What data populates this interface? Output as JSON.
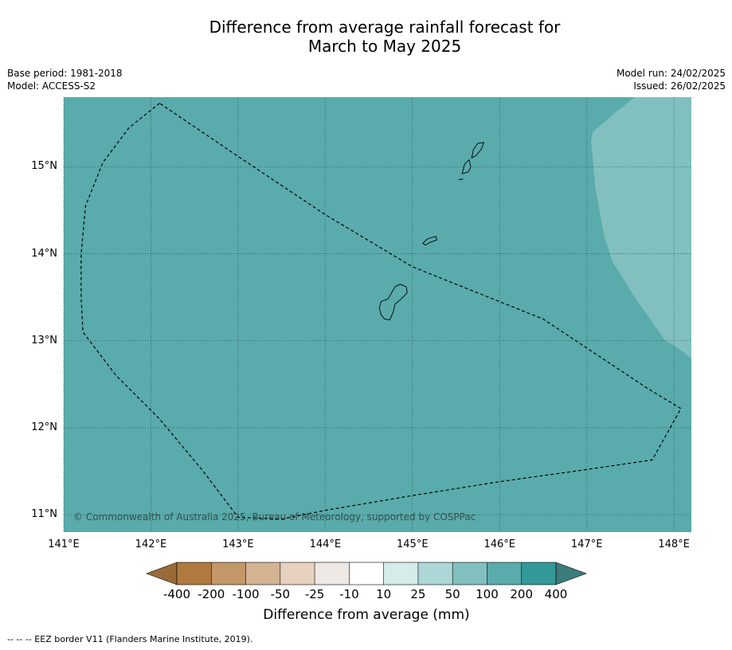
{
  "title": {
    "line1": "Difference from average rainfall forecast for",
    "line2": "March to May 2025"
  },
  "meta": {
    "base_period": "Base period: 1981-2018",
    "model": "Model: ACCESS-S2",
    "model_run": "Model run: 24/02/2025",
    "issued": "Issued: 26/02/2025"
  },
  "map": {
    "lon_ticks": [
      "141°E",
      "142°E",
      "143°E",
      "144°E",
      "145°E",
      "146°E",
      "147°E",
      "148°E"
    ],
    "lat_ticks": [
      "15°N",
      "14°N",
      "13°N",
      "12°N",
      "11°N"
    ],
    "lon_range": [
      141.0,
      148.2
    ],
    "lat_range": [
      10.8,
      15.8
    ],
    "background_category": "100 to 200 mm above average",
    "background_color": "#5aabab",
    "secondary_category": "50 to 100 mm above average",
    "secondary_color": "#82bfbf",
    "border_style": "dashed",
    "copyright": "© Commonwealth of Australia 2025, Bureau of Meteorology, supported by COSPPac",
    "eez_border_points": [
      [
        142.1,
        15.73
      ],
      [
        141.75,
        15.45
      ],
      [
        141.45,
        15.05
      ],
      [
        141.25,
        14.55
      ],
      [
        141.2,
        14.0
      ],
      [
        141.2,
        13.5
      ],
      [
        141.22,
        13.1
      ],
      [
        141.6,
        12.6
      ],
      [
        142.1,
        12.1
      ],
      [
        142.6,
        11.5
      ],
      [
        143.0,
        10.97
      ],
      [
        143.5,
        10.95
      ],
      [
        144.0,
        11.05
      ],
      [
        145.0,
        11.22
      ],
      [
        146.0,
        11.38
      ],
      [
        147.0,
        11.52
      ],
      [
        147.75,
        11.63
      ],
      [
        148.08,
        12.22
      ],
      [
        147.7,
        12.45
      ],
      [
        146.5,
        13.25
      ],
      [
        145.0,
        13.85
      ],
      [
        144.0,
        14.45
      ],
      [
        143.0,
        15.12
      ],
      [
        142.1,
        15.73
      ]
    ],
    "islands": [
      {
        "name": "guam",
        "points": [
          [
            144.64,
            13.45
          ],
          [
            144.72,
            13.48
          ],
          [
            144.8,
            13.62
          ],
          [
            144.86,
            13.65
          ],
          [
            144.93,
            13.62
          ],
          [
            144.94,
            13.55
          ],
          [
            144.87,
            13.48
          ],
          [
            144.8,
            13.42
          ],
          [
            144.78,
            13.33
          ],
          [
            144.74,
            13.24
          ],
          [
            144.68,
            13.25
          ],
          [
            144.64,
            13.3
          ],
          [
            144.62,
            13.38
          ],
          [
            144.64,
            13.45
          ]
        ]
      },
      {
        "name": "rota",
        "points": [
          [
            145.12,
            14.12
          ],
          [
            145.17,
            14.17
          ],
          [
            145.27,
            14.2
          ],
          [
            145.28,
            14.16
          ],
          [
            145.2,
            14.13
          ],
          [
            145.15,
            14.1
          ],
          [
            145.12,
            14.12
          ]
        ]
      },
      {
        "name": "tinian",
        "points": [
          [
            145.57,
            14.92
          ],
          [
            145.6,
            15.03
          ],
          [
            145.65,
            15.08
          ],
          [
            145.67,
            15.0
          ],
          [
            145.64,
            14.94
          ],
          [
            145.57,
            14.92
          ]
        ]
      },
      {
        "name": "saipan",
        "points": [
          [
            145.68,
            15.1
          ],
          [
            145.7,
            15.2
          ],
          [
            145.75,
            15.27
          ],
          [
            145.82,
            15.28
          ],
          [
            145.79,
            15.2
          ],
          [
            145.73,
            15.13
          ],
          [
            145.68,
            15.1
          ]
        ]
      }
    ],
    "aguijan_points": [
      [
        145.53,
        14.85
      ],
      [
        145.58,
        14.86
      ]
    ]
  },
  "secondary_region_points": [
    [
      148.2,
      12.8
    ],
    [
      148.0,
      12.95
    ],
    [
      147.9,
      13.0
    ],
    [
      147.55,
      13.5
    ],
    [
      147.3,
      13.9
    ],
    [
      147.2,
      14.2
    ],
    [
      147.1,
      14.75
    ],
    [
      147.05,
      15.3
    ],
    [
      147.07,
      15.4
    ],
    [
      147.3,
      15.6
    ],
    [
      147.55,
      15.8
    ],
    [
      148.2,
      15.8
    ]
  ],
  "colorbar": {
    "label": "Difference from average (mm)",
    "ticks": [
      "-400",
      "-200",
      "-100",
      "-50",
      "-25",
      "-10",
      "10",
      "25",
      "50",
      "100",
      "200",
      "400"
    ],
    "colors": [
      "#9a6a39",
      "#b07a3f",
      "#c39868",
      "#d4b393",
      "#e6d0be",
      "#eee9e5",
      "#ffffff",
      "#d5ecea",
      "#acd7d6",
      "#82bfbf",
      "#5aabab",
      "#339898",
      "#3c7c7c"
    ]
  },
  "footnote": "--  --  -- EEZ border V11 (Flanders Marine Institute, 2019)."
}
